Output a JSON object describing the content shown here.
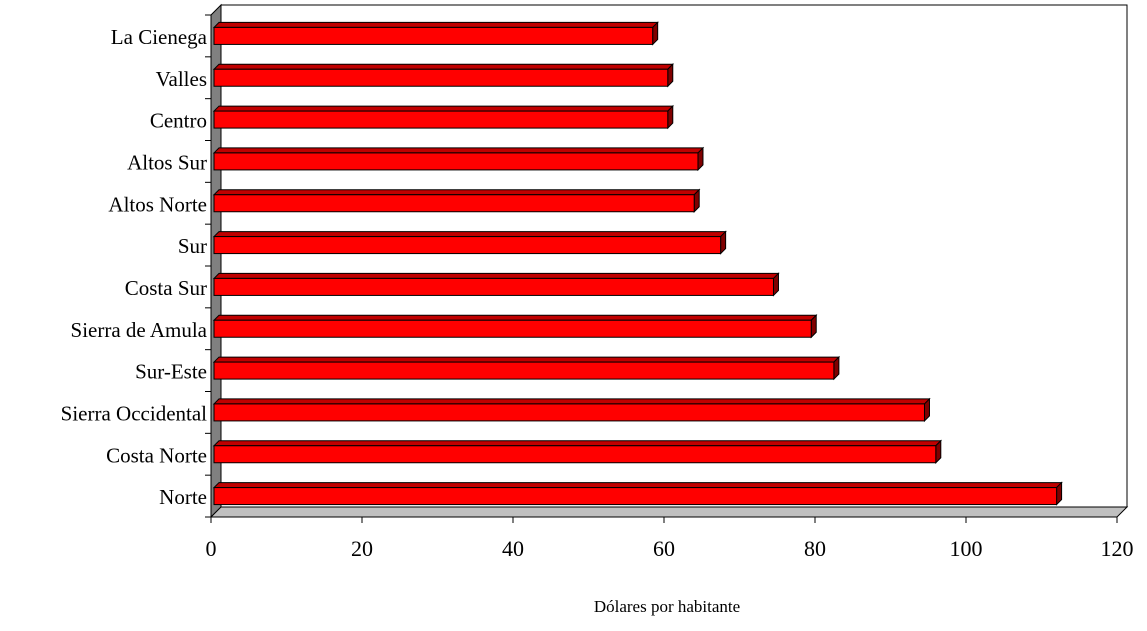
{
  "chart_data": {
    "type": "bar",
    "orientation": "horizontal",
    "style": "3d",
    "title": "",
    "xlabel": "Dólares por habitante",
    "ylabel": "",
    "xlim": [
      0,
      120
    ],
    "x_ticks": [
      "0",
      "20",
      "40",
      "60",
      "80",
      "100",
      "120"
    ],
    "grid": false,
    "legend": "none",
    "bar_color": "#ff0000",
    "bar_edge_color": "#000000",
    "wall_color": "#808080",
    "floor_color": "#c0c0c0",
    "categories": [
      "Norte",
      "Costa Norte",
      "Sierra Occidental",
      "Sur-Este",
      "Sierra de Amula",
      "Costa Sur",
      "Sur",
      "Altos Norte",
      "Altos Sur",
      "Centro",
      "Valles",
      "La Cienega"
    ],
    "values": [
      112,
      96,
      94.5,
      82.5,
      79.5,
      74.5,
      67.5,
      64,
      64.5,
      60.5,
      60.5,
      58.5
    ]
  }
}
